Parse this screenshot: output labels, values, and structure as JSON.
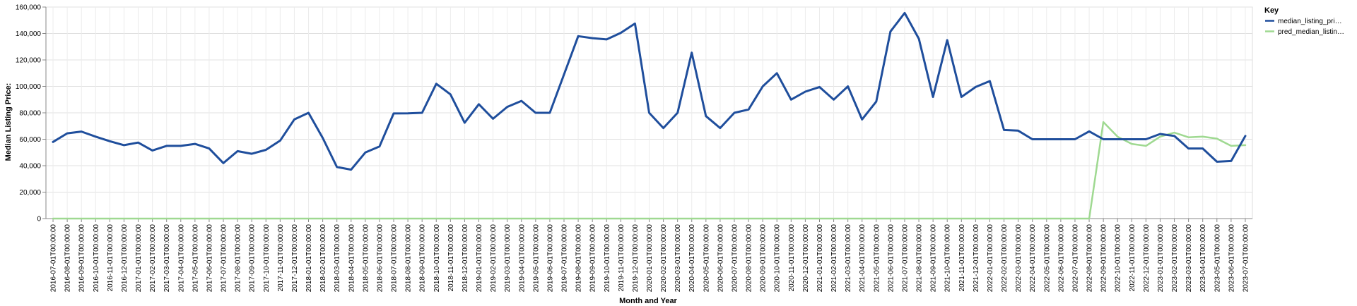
{
  "chart_data": {
    "type": "line",
    "xlabel": "Month and Year",
    "ylabel": "Median Listing Price:",
    "ylim": [
      0,
      160000
    ],
    "yticks": [
      0,
      20000,
      40000,
      60000,
      80000,
      100000,
      120000,
      140000,
      160000
    ],
    "ytick_labels": [
      "0",
      "20,000",
      "40,000",
      "60,000",
      "80,000",
      "100,000",
      "120,000",
      "140,000",
      "160,000"
    ],
    "grid": true,
    "legend": {
      "title": "Key",
      "placement": "top-right"
    },
    "categories": [
      "2016-07-01T00:00:00",
      "2016-08-01T00:00:00",
      "2016-09-01T00:00:00",
      "2016-10-01T00:00:00",
      "2016-11-01T00:00:00",
      "2016-12-01T00:00:00",
      "2017-01-01T00:00:00",
      "2017-02-01T00:00:00",
      "2017-03-01T00:00:00",
      "2017-04-01T00:00:00",
      "2017-05-01T00:00:00",
      "2017-06-01T00:00:00",
      "2017-07-01T00:00:00",
      "2017-08-01T00:00:00",
      "2017-09-01T00:00:00",
      "2017-10-01T00:00:00",
      "2017-11-01T00:00:00",
      "2017-12-01T00:00:00",
      "2018-01-01T00:00:00",
      "2018-02-01T00:00:00",
      "2018-03-01T00:00:00",
      "2018-04-01T00:00:00",
      "2018-05-01T00:00:00",
      "2018-06-01T00:00:00",
      "2018-07-01T00:00:00",
      "2018-08-01T00:00:00",
      "2018-09-01T00:00:00",
      "2018-10-01T00:00:00",
      "2018-11-01T00:00:00",
      "2018-12-01T00:00:00",
      "2019-01-01T00:00:00",
      "2019-02-01T00:00:00",
      "2019-03-01T00:00:00",
      "2019-04-01T00:00:00",
      "2019-05-01T00:00:00",
      "2019-06-01T00:00:00",
      "2019-07-01T00:00:00",
      "2019-08-01T00:00:00",
      "2019-09-01T00:00:00",
      "2019-10-01T00:00:00",
      "2019-11-01T00:00:00",
      "2019-12-01T00:00:00",
      "2020-01-01T00:00:00",
      "2020-02-01T00:00:00",
      "2020-03-01T00:00:00",
      "2020-04-01T00:00:00",
      "2020-05-01T00:00:00",
      "2020-06-01T00:00:00",
      "2020-07-01T00:00:00",
      "2020-08-01T00:00:00",
      "2020-09-01T00:00:00",
      "2020-10-01T00:00:00",
      "2020-11-01T00:00:00",
      "2020-12-01T00:00:00",
      "2021-01-01T00:00:00",
      "2021-02-01T00:00:00",
      "2021-03-01T00:00:00",
      "2021-04-01T00:00:00",
      "2021-05-01T00:00:00",
      "2021-06-01T00:00:00",
      "2021-07-01T00:00:00",
      "2021-08-01T00:00:00",
      "2021-09-01T00:00:00",
      "2021-10-01T00:00:00",
      "2021-11-01T00:00:00",
      "2021-12-01T00:00:00",
      "2022-01-01T00:00:00",
      "2022-02-01T00:00:00",
      "2022-03-01T00:00:00",
      "2022-04-01T00:00:00",
      "2022-05-01T00:00:00",
      "2022-06-01T00:00:00",
      "2022-07-01T00:00:00",
      "2022-08-01T00:00:00",
      "2022-09-01T00:00:00",
      "2022-10-01T00:00:00",
      "2022-11-01T00:00:00",
      "2022-12-01T00:00:00",
      "2023-01-01T00:00:00",
      "2023-02-01T00:00:00",
      "2023-03-01T00:00:00",
      "2023-04-01T00:00:00",
      "2023-05-01T00:00:00",
      "2023-06-01T00:00:00",
      "2023-07-01T00:00:00"
    ],
    "series": [
      {
        "name": "median_listing_pri…",
        "color": "#1f4e9c",
        "values": [
          58000,
          64500,
          65800,
          62000,
          58500,
          55500,
          57500,
          51500,
          55000,
          55000,
          56500,
          53000,
          42000,
          51000,
          49000,
          52000,
          59000,
          75000,
          80000,
          61000,
          39000,
          37000,
          50000,
          54500,
          79500,
          79600,
          80000,
          102000,
          94000,
          72500,
          86500,
          75500,
          84500,
          89000,
          80000,
          80000,
          109000,
          138000,
          136500,
          135500,
          140500,
          147500,
          80000,
          68500,
          80000,
          125500,
          77500,
          68500,
          80000,
          82500,
          100000,
          110000,
          90000,
          96000,
          99500,
          90000,
          100000,
          75000,
          88500,
          141500,
          155500,
          136000,
          92000,
          135000,
          92000,
          99500,
          104000,
          67000,
          66500,
          60000,
          60000,
          60000,
          60000,
          66000,
          60000,
          60000,
          60000,
          60000,
          64000,
          62500,
          53000,
          53000,
          43000,
          43500,
          62500
        ]
      },
      {
        "name": "pred_median_listin…",
        "color": "#9fd991",
        "values": [
          0,
          0,
          0,
          0,
          0,
          0,
          0,
          0,
          0,
          0,
          0,
          0,
          0,
          0,
          0,
          0,
          0,
          0,
          0,
          0,
          0,
          0,
          0,
          0,
          0,
          0,
          0,
          0,
          0,
          0,
          0,
          0,
          0,
          0,
          0,
          0,
          0,
          0,
          0,
          0,
          0,
          0,
          0,
          0,
          0,
          0,
          0,
          0,
          0,
          0,
          0,
          0,
          0,
          0,
          0,
          0,
          0,
          0,
          0,
          0,
          0,
          0,
          0,
          0,
          0,
          0,
          0,
          0,
          0,
          0,
          0,
          0,
          0,
          0,
          73000,
          62000,
          56500,
          55000,
          62000,
          65000,
          61500,
          62000,
          60500,
          55000,
          55500
        ]
      }
    ]
  }
}
